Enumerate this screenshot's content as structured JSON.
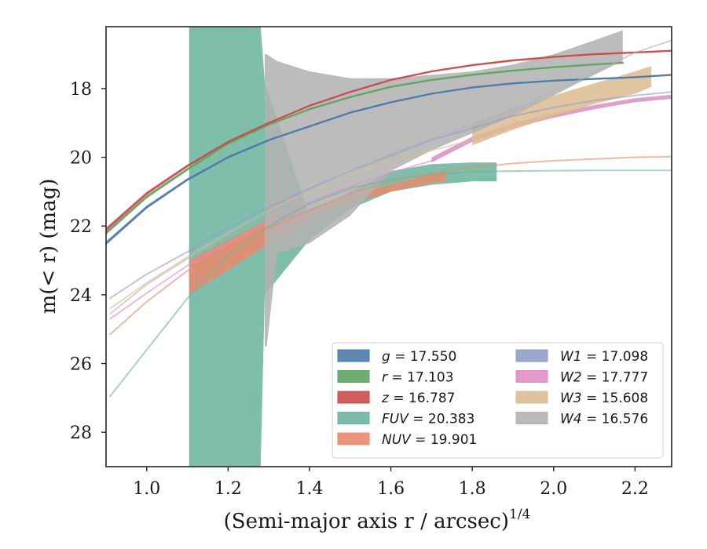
{
  "chart_data": {
    "type": "line",
    "xlabel": "(Semi-major axis r / arcsec)",
    "xlabel_superscript": "1/4",
    "ylabel": "m(< r) (mag)",
    "xlim": [
      0.9,
      2.29
    ],
    "ylim": [
      29.0,
      16.2
    ],
    "y_inverted": true,
    "x_ticks": [
      1.0,
      1.2,
      1.4,
      1.6,
      1.8,
      2.0,
      2.2
    ],
    "x_tick_labels": [
      "1.0",
      "1.2",
      "1.4",
      "1.6",
      "1.8",
      "2.0",
      "2.2"
    ],
    "y_ticks": [
      18,
      20,
      22,
      24,
      26,
      28
    ],
    "y_tick_labels": [
      "18",
      "20",
      "22",
      "24",
      "26",
      "28"
    ],
    "grid": false,
    "legend_position": "lower-right",
    "series": [
      {
        "name": "g = 17.550",
        "legend_var": "g",
        "legend_value": "= 17.550",
        "color": "#4c7aaa",
        "x": [
          0.9,
          1.0,
          1.1,
          1.2,
          1.3,
          1.4,
          1.5,
          1.6,
          1.7,
          1.8,
          1.9,
          2.0,
          2.1,
          2.2,
          2.29
        ],
        "y": [
          22.5,
          21.45,
          20.65,
          20.0,
          19.5,
          19.1,
          18.7,
          18.4,
          18.15,
          17.97,
          17.85,
          17.77,
          17.72,
          17.67,
          17.6
        ],
        "band_halfwidth": [
          0.06,
          0.05,
          0.04,
          0.03,
          0.03,
          0.02,
          0.02,
          0.02,
          0.02,
          0.02,
          0.02,
          0.02,
          0.02,
          0.02,
          0.02
        ]
      },
      {
        "name": "r = 17.103",
        "legend_var": "r",
        "legend_value": "= 17.103",
        "color": "#5fa55f",
        "x": [
          0.9,
          1.0,
          1.1,
          1.2,
          1.3,
          1.4,
          1.5,
          1.6,
          1.7,
          1.8,
          1.9,
          2.0,
          2.1,
          2.17
        ],
        "y": [
          22.2,
          21.15,
          20.35,
          19.6,
          19.05,
          18.6,
          18.25,
          17.95,
          17.75,
          17.6,
          17.48,
          17.38,
          17.3,
          17.25
        ],
        "band_halfwidth": [
          0.06,
          0.05,
          0.04,
          0.03,
          0.03,
          0.02,
          0.02,
          0.02,
          0.02,
          0.02,
          0.02,
          0.02,
          0.02,
          0.02
        ]
      },
      {
        "name": "z = 16.787",
        "legend_var": "z",
        "legend_value": "= 16.787",
        "color": "#cc4b4b",
        "x": [
          0.9,
          1.0,
          1.1,
          1.2,
          1.3,
          1.4,
          1.5,
          1.6,
          1.7,
          1.8,
          1.9,
          2.0,
          2.1,
          2.2,
          2.29
        ],
        "y": [
          22.1,
          21.05,
          20.25,
          19.55,
          19.0,
          18.5,
          18.1,
          17.75,
          17.5,
          17.32,
          17.18,
          17.08,
          17.0,
          16.95,
          16.9
        ],
        "band_halfwidth": [
          0.06,
          0.05,
          0.04,
          0.03,
          0.03,
          0.02,
          0.02,
          0.02,
          0.02,
          0.02,
          0.02,
          0.02,
          0.02,
          0.02,
          0.02
        ]
      },
      {
        "name": "FUV = 20.383",
        "legend_var": "FUV",
        "legend_value": "= 20.383",
        "color": "#6cb59e",
        "curve_x": [
          0.91,
          1.0,
          1.1,
          1.2,
          1.3,
          1.4,
          1.5,
          1.6,
          1.7,
          1.8,
          1.9,
          2.0,
          2.1,
          2.2,
          2.29
        ],
        "curve_y": [
          26.95,
          25.6,
          24.1,
          22.85,
          22.0,
          21.35,
          20.9,
          20.65,
          20.5,
          20.42,
          20.4,
          20.39,
          20.38,
          20.38,
          20.38
        ],
        "band_x": [
          1.104,
          1.28,
          1.29,
          1.4,
          1.5,
          1.6,
          1.7,
          1.8,
          1.86
        ],
        "band_lo": [
          29.0,
          29.0,
          24.0,
          22.4,
          21.5,
          21.0,
          20.8,
          20.7,
          20.7
        ],
        "band_hi": [
          16.2,
          16.2,
          17.8,
          21.7,
          21.0,
          20.4,
          20.2,
          20.15,
          20.15
        ]
      },
      {
        "name": "NUV = 19.901",
        "legend_var": "NUV",
        "legend_value": "= 19.901",
        "color": "#e88b6e",
        "curve_x": [
          0.91,
          1.0,
          1.1,
          1.2,
          1.3,
          1.4,
          1.5,
          1.6,
          1.7,
          1.8,
          1.9,
          2.0,
          2.1,
          2.2,
          2.29
        ],
        "curve_y": [
          25.15,
          24.2,
          23.3,
          22.6,
          22.05,
          21.55,
          21.05,
          20.7,
          20.45,
          20.3,
          20.18,
          20.1,
          20.05,
          20.0,
          19.98
        ],
        "band_x": [
          1.104,
          1.29,
          1.4,
          1.5,
          1.6,
          1.7,
          1.735
        ],
        "band_lo": [
          24.0,
          22.6,
          21.85,
          21.35,
          21.0,
          20.75,
          20.7
        ],
        "band_hi": [
          23.0,
          21.85,
          21.5,
          21.1,
          20.8,
          20.5,
          20.4
        ]
      },
      {
        "name": "W1 = 17.098",
        "legend_var": "W1",
        "legend_value": "= 17.098",
        "color": "#8f9fc6",
        "x": [
          0.91,
          1.0,
          1.1,
          1.2,
          1.3,
          1.4,
          1.5,
          1.6,
          1.7,
          1.8,
          1.9,
          2.0,
          2.1,
          2.2,
          2.29
        ],
        "y": [
          24.1,
          23.4,
          22.75,
          22.05,
          21.45,
          20.9,
          20.4,
          19.95,
          19.5,
          19.15,
          18.8,
          18.55,
          18.35,
          18.2,
          18.1
        ]
      },
      {
        "name": "W2 = 17.777",
        "legend_var": "W2",
        "legend_value": "= 17.777",
        "color": "#df8fc6",
        "curve_x": [
          0.91,
          1.0,
          1.1,
          1.2,
          1.3,
          1.4,
          1.5,
          1.6,
          1.7
        ],
        "curve_y": [
          24.7,
          23.95,
          23.15,
          22.5,
          21.85,
          21.3,
          20.85,
          20.45,
          20.1
        ],
        "band_x": [
          1.7,
          1.8,
          1.9,
          2.0,
          2.1,
          2.2,
          2.29
        ],
        "band_lo": [
          20.15,
          19.55,
          19.15,
          18.85,
          18.6,
          18.4,
          18.3
        ],
        "band_hi": [
          20.0,
          19.4,
          19.0,
          18.72,
          18.48,
          18.28,
          18.18
        ]
      },
      {
        "name": "W3 = 15.608",
        "legend_var": "W3",
        "legend_value": "= 15.608",
        "color": "#dcbd93",
        "curve_x": [
          0.91,
          1.0,
          1.1,
          1.2,
          1.3,
          1.4,
          1.5,
          1.6,
          1.7,
          1.8
        ],
        "curve_y": [
          24.4,
          23.65,
          22.9,
          22.2,
          21.55,
          21.0,
          20.55,
          20.1,
          19.8,
          19.5
        ],
        "band_x": [
          1.8,
          1.9,
          2.0,
          2.1,
          2.2,
          2.24
        ],
        "band_lo": [
          19.65,
          19.2,
          18.8,
          18.45,
          18.15,
          17.95
        ],
        "band_hi": [
          19.05,
          18.6,
          18.2,
          17.85,
          17.5,
          17.35
        ]
      },
      {
        "name": "W4 = 16.576",
        "legend_var": "W4",
        "legend_value": "= 16.576",
        "color": "#b3b3b3",
        "curve_x": [
          0.91,
          1.0,
          1.1,
          1.2,
          1.3,
          1.4,
          1.5,
          1.6,
          1.7,
          1.8,
          1.9,
          2.0,
          2.1,
          2.2,
          2.29
        ],
        "curve_y": [
          24.55,
          23.7,
          22.95,
          22.25,
          21.55,
          20.95,
          20.4,
          19.9,
          19.45,
          19.05,
          18.6,
          18.1,
          17.55,
          16.95,
          16.6
        ],
        "band_x": [
          1.29,
          1.295,
          1.32,
          1.4,
          1.5,
          1.6,
          1.7,
          1.8,
          1.9,
          2.0,
          2.1,
          2.17
        ],
        "band_lo": [
          25.5,
          25.5,
          22.8,
          22.5,
          21.7,
          20.4,
          19.8,
          19.3,
          18.8,
          18.2,
          17.6,
          17.2
        ],
        "band_hi": [
          17.0,
          17.0,
          17.2,
          17.5,
          17.7,
          17.7,
          17.6,
          17.5,
          17.3,
          17.0,
          16.6,
          16.3
        ]
      }
    ]
  }
}
